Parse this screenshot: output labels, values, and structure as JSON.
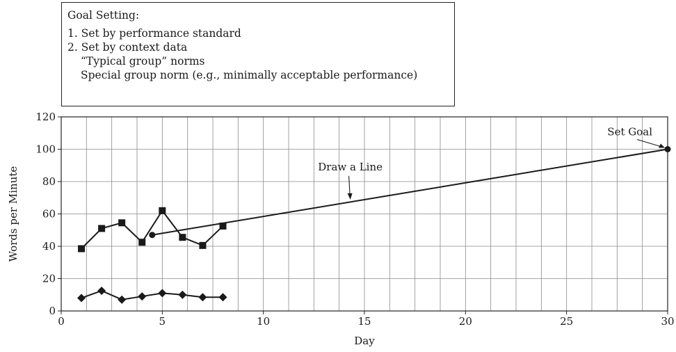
{
  "goal_box": {
    "heading": "Goal Setting:",
    "item1": "1. Set by performance standard",
    "item2": "2. Set by context data",
    "item2_sub1": "“Typical group” norms",
    "item2_sub2": "Special group norm (e.g., minimally acceptable performance)"
  },
  "chart_data": {
    "type": "line",
    "xlabel": "Day",
    "ylabel": "Words per Minute",
    "xlim": [
      0,
      30
    ],
    "ylim": [
      0,
      120
    ],
    "x_ticks": [
      0,
      5,
      10,
      15,
      20,
      25,
      30
    ],
    "y_ticks": [
      0,
      20,
      40,
      60,
      80,
      100,
      120
    ],
    "x_minor_step": 1.25,
    "grid": true,
    "series": [
      {
        "marker": "square",
        "color": "#1a1a1a",
        "x": [
          1,
          2,
          3,
          4,
          5,
          6,
          7,
          8
        ],
        "y": [
          38.5,
          51,
          54.5,
          42.5,
          62,
          45.5,
          40.5,
          52.5
        ]
      },
      {
        "marker": "diamond",
        "color": "#1a1a1a",
        "x": [
          1,
          2,
          3,
          4,
          5,
          6,
          7,
          8
        ],
        "y": [
          8,
          12.5,
          7,
          9,
          11,
          10,
          8.5,
          8.5
        ]
      }
    ],
    "aimline": {
      "x": [
        4.5,
        30
      ],
      "y": [
        47,
        100
      ]
    },
    "annotations": [
      {
        "text": "Set Goal",
        "x": 30,
        "y": 100
      },
      {
        "text": "Draw a Line",
        "x": 14.3,
        "y": 68
      }
    ]
  }
}
